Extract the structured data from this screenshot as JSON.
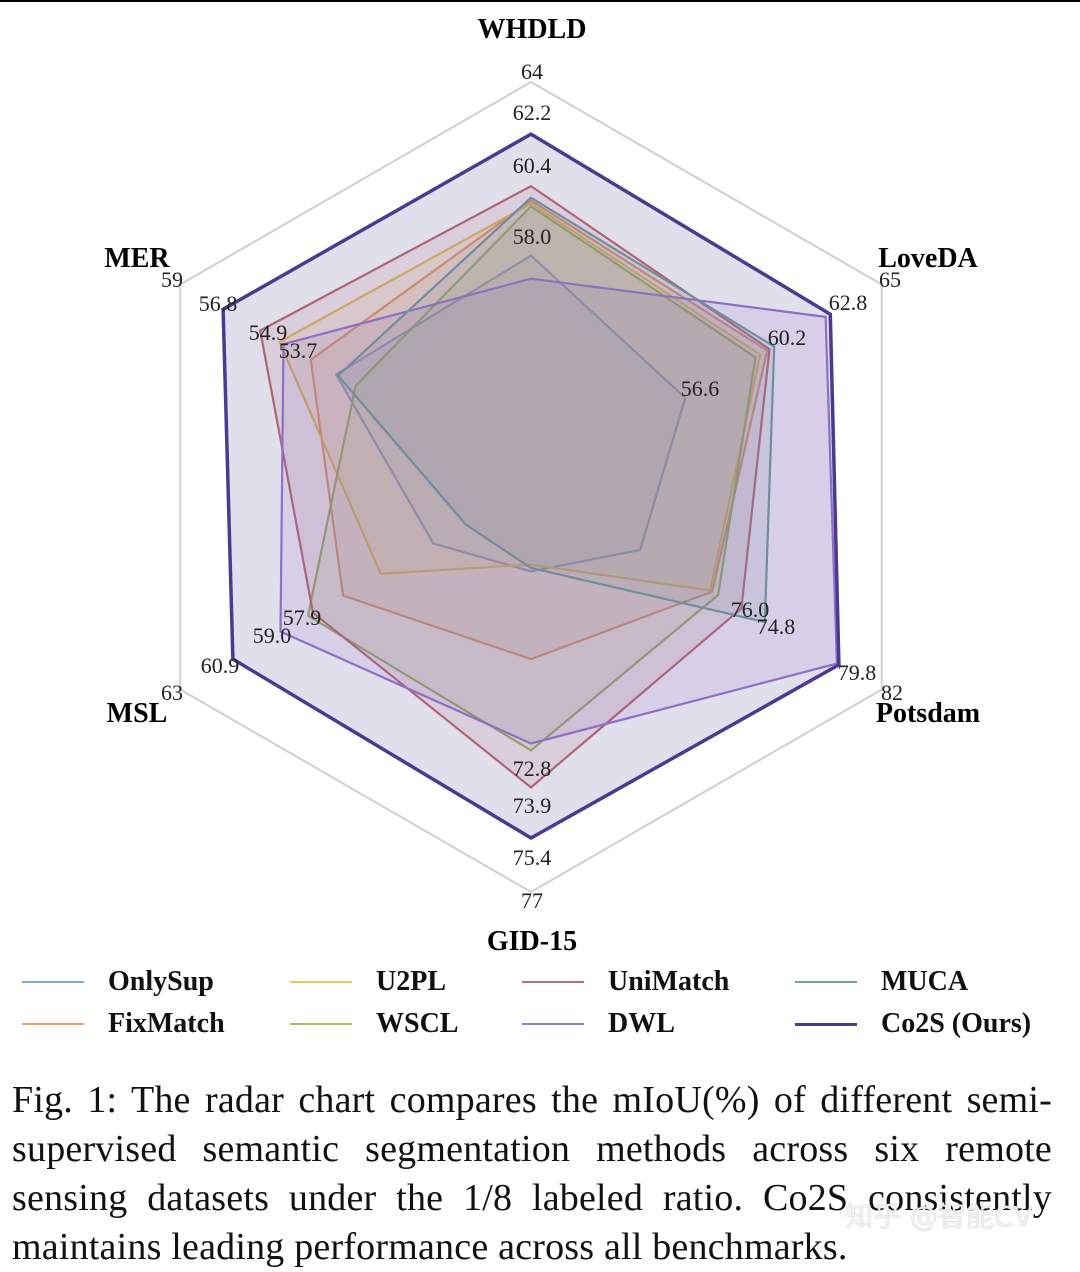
{
  "chart_data": {
    "type": "radar",
    "title": "",
    "axes": [
      {
        "name": "WHDLD",
        "min": 50,
        "max": 64
      },
      {
        "name": "LoveDA",
        "min": 50,
        "max": 65
      },
      {
        "name": "Potsdam",
        "min": 64,
        "max": 82
      },
      {
        "name": "GID-15",
        "min": 65,
        "max": 77
      },
      {
        "name": "MSL",
        "min": 49,
        "max": 63
      },
      {
        "name": "MER",
        "min": 41,
        "max": 59
      }
    ],
    "series": [
      {
        "name": "OnlySup",
        "color": "#7fa6e0",
        "values": [
          58.0,
          56.6,
          69.6,
          67.5,
          52.9,
          51.0
        ]
      },
      {
        "name": "FixMatch",
        "color": "#e8a070",
        "values": [
          59.9,
          60.1,
          73.3,
          70.1,
          56.5,
          52.3
        ]
      },
      {
        "name": "U2PL",
        "color": "#ecc75a",
        "values": [
          59.8,
          59.8,
          73.2,
          67.3,
          55.0,
          53.9
        ]
      },
      {
        "name": "WSCL",
        "color": "#9cbf62",
        "values": [
          59.7,
          59.6,
          73.6,
          72.8,
          57.9,
          50.0
        ]
      },
      {
        "name": "UniMatch",
        "color": "#c06f6f",
        "values": [
          60.4,
          60.2,
          74.8,
          73.9,
          57.7,
          54.9
        ]
      },
      {
        "name": "DWL",
        "color": "#9a7ad0",
        "values": [
          57.2,
          62.6,
          79.7,
          72.6,
          59.0,
          53.7
        ]
      },
      {
        "name": "MUCA",
        "color": "#7a9ea0",
        "values": [
          60.0,
          60.4,
          76.0,
          67.4,
          51.6,
          50.9
        ]
      },
      {
        "name": "Co2S (Ours)",
        "color": "#4b3a8f",
        "values": [
          62.2,
          62.8,
          79.8,
          75.4,
          60.9,
          56.8
        ]
      }
    ],
    "tick_labels": [
      "64",
      "65",
      "82",
      "77",
      "63",
      "59"
    ],
    "annotations": [
      {
        "axis": 0,
        "text": "62.2"
      },
      {
        "axis": 0,
        "text": "60.4"
      },
      {
        "axis": 0,
        "text": "58.0"
      },
      {
        "axis": 1,
        "text": "62.8"
      },
      {
        "axis": 1,
        "text": "60.2"
      },
      {
        "axis": 1,
        "text": "56.6"
      },
      {
        "axis": 2,
        "text": "79.8"
      },
      {
        "axis": 2,
        "text": "76.0"
      },
      {
        "axis": 2,
        "text": "74.8"
      },
      {
        "axis": 3,
        "text": "75.4"
      },
      {
        "axis": 3,
        "text": "73.9"
      },
      {
        "axis": 3,
        "text": "72.8"
      },
      {
        "axis": 4,
        "text": "60.9"
      },
      {
        "axis": 4,
        "text": "59.0"
      },
      {
        "axis": 4,
        "text": "57.9"
      },
      {
        "axis": 5,
        "text": "56.8"
      },
      {
        "axis": 5,
        "text": "54.9"
      },
      {
        "axis": 5,
        "text": "53.7"
      }
    ],
    "grid": true,
    "legend_position": "bottom",
    "legend": [
      "OnlySup",
      "U2PL",
      "UniMatch",
      "MUCA",
      "FixMatch",
      "WSCL",
      "DWL",
      "Co2S (Ours)"
    ]
  },
  "caption": "Fig. 1: The radar chart compares the mIoU(%) of different semi-supervised semantic segmentation methods across six remote sensing datasets under the 1/8 labeled ratio. Co2S consistently maintains leading performance across all benchmarks.",
  "watermark": "知乎 @智能CV"
}
